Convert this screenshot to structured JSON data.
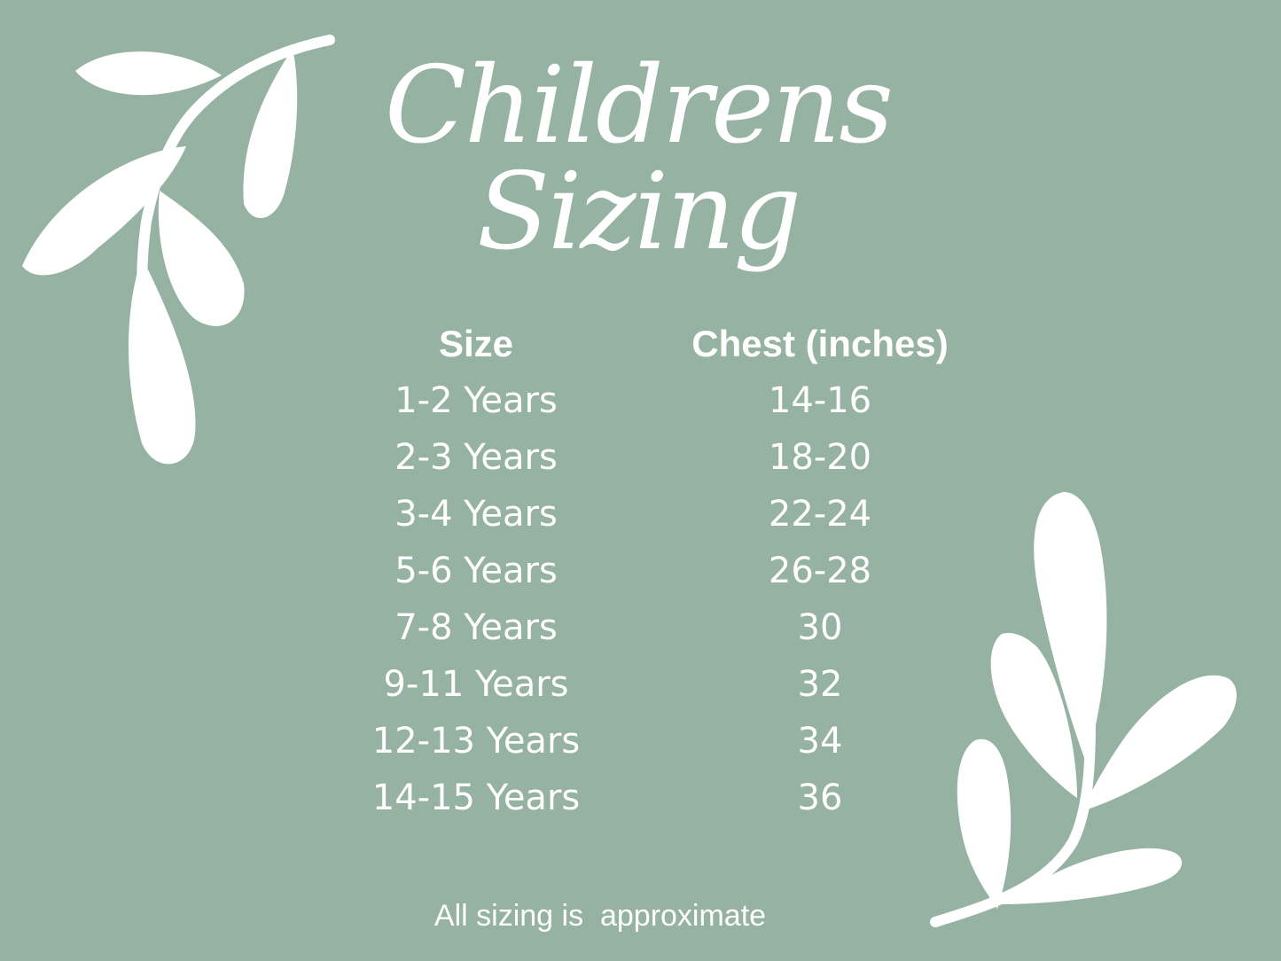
{
  "title": "Childrens Sizing",
  "table": {
    "headers": [
      "Size",
      "Chest (inches)"
    ],
    "rows": [
      [
        "1-2 Years",
        "14-16"
      ],
      [
        "2-3 Years",
        "18-20"
      ],
      [
        "3-4 Years",
        "22-24"
      ],
      [
        "5-6 Years",
        "26-28"
      ],
      [
        "7-8 Years",
        "30"
      ],
      [
        "9-11 Years",
        "32"
      ],
      [
        "12-13 Years",
        "34"
      ],
      [
        "14-15 Years",
        "36"
      ]
    ]
  },
  "footer": "All sizing is  approximate",
  "colors": {
    "background": "#95b2a3",
    "foreground": "#ffffff"
  },
  "decorations": [
    "leaf-branch-icon",
    "leaf-branch-icon"
  ]
}
